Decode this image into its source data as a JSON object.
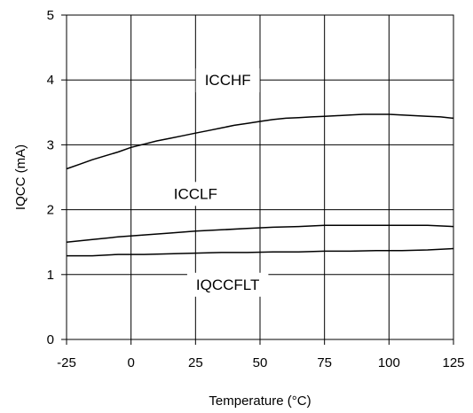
{
  "chart_data": {
    "type": "line",
    "title": "",
    "xlabel": "Temperature (°C)",
    "ylabel": "IQCC (mA)",
    "xlim": [
      -25,
      125
    ],
    "ylim": [
      0,
      5
    ],
    "xticks": [
      -25,
      0,
      25,
      50,
      75,
      100,
      125
    ],
    "yticks": [
      0,
      1,
      2,
      3,
      4,
      5
    ],
    "x_tick_labels": [
      "-25",
      "0",
      "25",
      "50",
      "75",
      "100",
      "125"
    ],
    "y_tick_labels": [
      "0",
      "1",
      "2",
      "3",
      "4",
      "5"
    ],
    "grid": true,
    "legend": "none",
    "series": [
      {
        "name": "ICCHF",
        "x": [
          -25,
          -20,
          -15,
          -10,
          -5,
          0,
          5,
          10,
          15,
          20,
          25,
          30,
          35,
          40,
          45,
          50,
          55,
          60,
          65,
          70,
          75,
          80,
          85,
          90,
          95,
          100,
          105,
          110,
          115,
          120,
          125
        ],
        "y": [
          2.63,
          2.7,
          2.77,
          2.83,
          2.89,
          2.96,
          3.01,
          3.06,
          3.1,
          3.14,
          3.18,
          3.22,
          3.26,
          3.3,
          3.33,
          3.36,
          3.39,
          3.41,
          3.42,
          3.43,
          3.44,
          3.45,
          3.46,
          3.47,
          3.47,
          3.47,
          3.46,
          3.45,
          3.44,
          3.43,
          3.41
        ]
      },
      {
        "name": "ICCLF",
        "x": [
          -25,
          -15,
          -5,
          5,
          15,
          25,
          35,
          45,
          55,
          65,
          75,
          85,
          95,
          105,
          115,
          125
        ],
        "y": [
          1.5,
          1.54,
          1.58,
          1.61,
          1.64,
          1.67,
          1.69,
          1.71,
          1.73,
          1.74,
          1.76,
          1.76,
          1.76,
          1.76,
          1.76,
          1.74
        ]
      },
      {
        "name": "IQCCFLT",
        "x": [
          -25,
          -15,
          -5,
          5,
          15,
          25,
          35,
          45,
          55,
          65,
          75,
          85,
          95,
          105,
          115,
          125
        ],
        "y": [
          1.29,
          1.29,
          1.31,
          1.31,
          1.32,
          1.33,
          1.34,
          1.34,
          1.35,
          1.35,
          1.36,
          1.36,
          1.37,
          1.37,
          1.38,
          1.4
        ]
      }
    ]
  }
}
